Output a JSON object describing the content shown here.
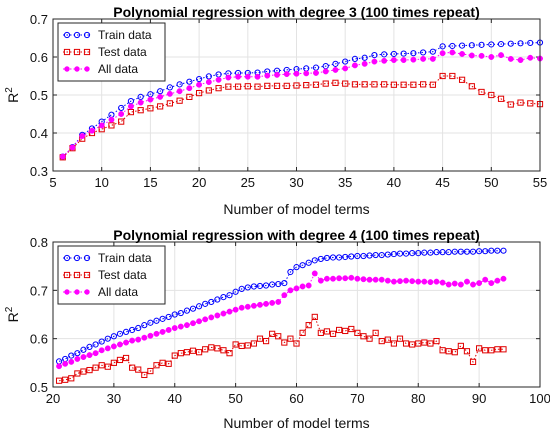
{
  "chart_data": [
    {
      "type": "line",
      "title": "Polynomial regression with degree 3 (100 times repeat)",
      "xlabel": "Number of model terms",
      "ylabel": "R",
      "ylabel_sup": "2",
      "xlim": [
        5,
        55
      ],
      "ylim": [
        0.3,
        0.7
      ],
      "xticks": [
        "5",
        "10",
        "15",
        "20",
        "25",
        "30",
        "35",
        "40",
        "45",
        "50",
        "55"
      ],
      "yticks": [
        "0.3",
        "0.4",
        "0.5",
        "0.6",
        "0.7"
      ],
      "grid": true,
      "legend": "top-left",
      "x": [
        6,
        7,
        8,
        9,
        10,
        11,
        12,
        13,
        14,
        15,
        16,
        17,
        18,
        19,
        20,
        21,
        22,
        23,
        24,
        25,
        26,
        27,
        28,
        29,
        30,
        31,
        32,
        33,
        34,
        35,
        36,
        37,
        38,
        39,
        40,
        41,
        42,
        43,
        44,
        45,
        46,
        47,
        48,
        49,
        50,
        51,
        52,
        53,
        54,
        55
      ],
      "series": [
        {
          "name": "Train data",
          "color": "#0000ff",
          "marker": "circle-open",
          "values": [
            0.338,
            0.363,
            0.395,
            0.412,
            0.43,
            0.448,
            0.466,
            0.484,
            0.495,
            0.502,
            0.51,
            0.52,
            0.528,
            0.535,
            0.542,
            0.549,
            0.554,
            0.557,
            0.558,
            0.558,
            0.559,
            0.562,
            0.564,
            0.566,
            0.568,
            0.57,
            0.572,
            0.576,
            0.582,
            0.588,
            0.595,
            0.598,
            0.605,
            0.607,
            0.608,
            0.609,
            0.61,
            0.612,
            0.614,
            0.628,
            0.629,
            0.63,
            0.631,
            0.632,
            0.633,
            0.634,
            0.635,
            0.636,
            0.637,
            0.638
          ]
        },
        {
          "name": "Test data",
          "color": "#e00000",
          "marker": "square-open",
          "values": [
            0.336,
            0.36,
            0.385,
            0.4,
            0.41,
            0.42,
            0.43,
            0.455,
            0.46,
            0.465,
            0.47,
            0.478,
            0.485,
            0.495,
            0.505,
            0.512,
            0.518,
            0.522,
            0.522,
            0.523,
            0.522,
            0.524,
            0.524,
            0.524,
            0.525,
            0.526,
            0.527,
            0.53,
            0.532,
            0.53,
            0.528,
            0.528,
            0.528,
            0.528,
            0.527,
            0.527,
            0.527,
            0.528,
            0.527,
            0.55,
            0.55,
            0.54,
            0.523,
            0.508,
            0.5,
            0.49,
            0.475,
            0.48,
            0.478,
            0.476
          ]
        },
        {
          "name": "All data",
          "color": "#ff00ff",
          "marker": "dot",
          "values": [
            0.338,
            0.362,
            0.392,
            0.406,
            0.42,
            0.435,
            0.45,
            0.47,
            0.48,
            0.488,
            0.495,
            0.503,
            0.51,
            0.518,
            0.527,
            0.534,
            0.54,
            0.546,
            0.548,
            0.548,
            0.548,
            0.551,
            0.553,
            0.555,
            0.556,
            0.557,
            0.558,
            0.562,
            0.566,
            0.57,
            0.578,
            0.582,
            0.588,
            0.59,
            0.592,
            0.592,
            0.593,
            0.595,
            0.595,
            0.61,
            0.612,
            0.608,
            0.604,
            0.603,
            0.6,
            0.605,
            0.595,
            0.592,
            0.598,
            0.596
          ]
        }
      ]
    },
    {
      "type": "line",
      "title": "Polynomial regression with degree 4 (100 times repeat)",
      "xlabel": "Number of model terms",
      "ylabel": "R",
      "ylabel_sup": "2",
      "xlim": [
        20,
        100
      ],
      "ylim": [
        0.5,
        0.8
      ],
      "xticks": [
        "20",
        "30",
        "40",
        "50",
        "60",
        "70",
        "80",
        "90",
        "100"
      ],
      "yticks": [
        "0.5",
        "0.6",
        "0.7",
        "0.8"
      ],
      "grid": true,
      "legend": "top-left",
      "x": [
        21,
        22,
        23,
        24,
        25,
        26,
        27,
        28,
        29,
        30,
        31,
        32,
        33,
        34,
        35,
        36,
        37,
        38,
        39,
        40,
        41,
        42,
        43,
        44,
        45,
        46,
        47,
        48,
        49,
        50,
        51,
        52,
        53,
        54,
        55,
        56,
        57,
        58,
        59,
        60,
        61,
        62,
        63,
        64,
        65,
        66,
        67,
        68,
        69,
        70,
        71,
        72,
        73,
        74,
        75,
        76,
        77,
        78,
        79,
        80,
        81,
        82,
        83,
        84,
        85,
        86,
        87,
        88,
        89,
        90,
        91,
        92,
        93,
        94
      ],
      "series": [
        {
          "name": "Train data",
          "color": "#0000ff",
          "marker": "circle-open",
          "values": [
            0.553,
            0.558,
            0.565,
            0.57,
            0.577,
            0.583,
            0.588,
            0.594,
            0.6,
            0.605,
            0.61,
            0.614,
            0.618,
            0.622,
            0.628,
            0.633,
            0.637,
            0.641,
            0.645,
            0.65,
            0.653,
            0.658,
            0.662,
            0.667,
            0.672,
            0.676,
            0.681,
            0.686,
            0.69,
            0.697,
            0.703,
            0.706,
            0.708,
            0.709,
            0.71,
            0.712,
            0.713,
            0.715,
            0.738,
            0.748,
            0.752,
            0.757,
            0.762,
            0.765,
            0.767,
            0.768,
            0.768,
            0.769,
            0.77,
            0.771,
            0.771,
            0.772,
            0.773,
            0.773,
            0.774,
            0.775,
            0.776,
            0.776,
            0.777,
            0.777,
            0.778,
            0.778,
            0.779,
            0.779,
            0.779,
            0.78,
            0.78,
            0.78,
            0.78,
            0.781,
            0.781,
            0.782,
            0.782,
            0.782
          ]
        },
        {
          "name": "Test data",
          "color": "#e00000",
          "marker": "square-open",
          "values": [
            0.513,
            0.515,
            0.518,
            0.528,
            0.532,
            0.535,
            0.54,
            0.545,
            0.542,
            0.55,
            0.556,
            0.56,
            0.54,
            0.536,
            0.525,
            0.533,
            0.545,
            0.55,
            0.548,
            0.565,
            0.57,
            0.572,
            0.575,
            0.572,
            0.578,
            0.582,
            0.58,
            0.576,
            0.57,
            0.588,
            0.585,
            0.586,
            0.59,
            0.6,
            0.595,
            0.61,
            0.605,
            0.592,
            0.6,
            0.59,
            0.612,
            0.628,
            0.645,
            0.612,
            0.615,
            0.61,
            0.618,
            0.616,
            0.62,
            0.612,
            0.605,
            0.6,
            0.612,
            0.595,
            0.598,
            0.59,
            0.6,
            0.59,
            0.588,
            0.59,
            0.592,
            0.59,
            0.595,
            0.576,
            0.574,
            0.572,
            0.585,
            0.574,
            0.552,
            0.58,
            0.576,
            0.576,
            0.578,
            0.578
          ]
        },
        {
          "name": "All data",
          "color": "#ff00ff",
          "marker": "dot",
          "values": [
            0.543,
            0.548,
            0.552,
            0.558,
            0.562,
            0.566,
            0.57,
            0.576,
            0.58,
            0.584,
            0.588,
            0.592,
            0.596,
            0.598,
            0.602,
            0.606,
            0.61,
            0.614,
            0.618,
            0.622,
            0.625,
            0.628,
            0.632,
            0.636,
            0.64,
            0.644,
            0.648,
            0.652,
            0.656,
            0.66,
            0.664,
            0.666,
            0.668,
            0.67,
            0.672,
            0.674,
            0.676,
            0.69,
            0.7,
            0.704,
            0.708,
            0.71,
            0.735,
            0.72,
            0.724,
            0.724,
            0.725,
            0.725,
            0.726,
            0.724,
            0.723,
            0.722,
            0.722,
            0.722,
            0.72,
            0.718,
            0.719,
            0.72,
            0.719,
            0.718,
            0.718,
            0.717,
            0.718,
            0.716,
            0.712,
            0.714,
            0.712,
            0.718,
            0.712,
            0.715,
            0.722,
            0.715,
            0.72,
            0.724
          ]
        }
      ]
    }
  ]
}
